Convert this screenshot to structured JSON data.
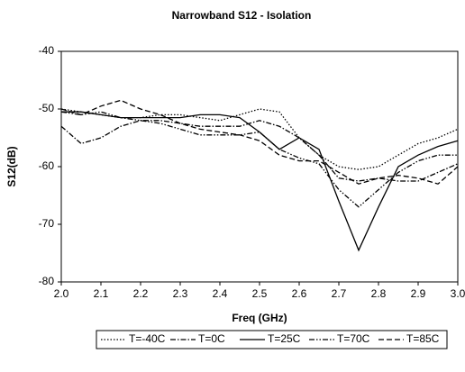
{
  "chart_data": {
    "type": "line",
    "title": "Narrowband S12 - Isolation",
    "xlabel": "Freq (GHz)",
    "ylabel": "S12(dB)",
    "x": [
      2.0,
      2.05,
      2.1,
      2.15,
      2.2,
      2.25,
      2.3,
      2.35,
      2.4,
      2.45,
      2.5,
      2.55,
      2.6,
      2.65,
      2.7,
      2.75,
      2.8,
      2.85,
      2.9,
      2.95,
      3.0
    ],
    "series": [
      {
        "name": "T=-40C",
        "color": "#000000",
        "dash": "1.5,2",
        "values": [
          -50,
          -50.5,
          -51,
          -51.5,
          -51.5,
          -51,
          -51,
          -51.5,
          -52,
          -51,
          -50,
          -50.5,
          -55,
          -58,
          -60,
          -60.5,
          -60,
          -58,
          -56,
          -55,
          -53.5
        ]
      },
      {
        "name": "T=0C",
        "color": "#000000",
        "dash": "6,2,1.5,2",
        "values": [
          -53,
          -56,
          -55,
          -53,
          -52,
          -52,
          -52.5,
          -53,
          -53,
          -53,
          -52,
          -53,
          -55,
          -58,
          -62,
          -62.5,
          -62,
          -62.5,
          -62.5,
          -61,
          -59.5
        ]
      },
      {
        "name": "T=25C",
        "color": "#000000",
        "dash": "none",
        "values": [
          -50.5,
          -50.5,
          -51,
          -51.5,
          -51.5,
          -51.5,
          -51.5,
          -51,
          -51,
          -51.5,
          -54,
          -57,
          -55,
          -57,
          -66,
          -74.5,
          -67,
          -60,
          -58,
          -56.5,
          -55.5
        ]
      },
      {
        "name": "T=70C",
        "color": "#000000",
        "dash": "6,2,1.5,2,1.5,2",
        "values": [
          -50.5,
          -51,
          -50.5,
          -51.5,
          -52,
          -52.5,
          -53.5,
          -54.5,
          -54.5,
          -54.5,
          -54,
          -57,
          -58.5,
          -59.5,
          -64,
          -67,
          -64,
          -61,
          -59,
          -58,
          -58
        ]
      },
      {
        "name": "T=85C",
        "color": "#000000",
        "dash": "6,3",
        "values": [
          -50,
          -51,
          -49.5,
          -48.5,
          -50,
          -51,
          -52.5,
          -53.5,
          -54,
          -54.5,
          -55.5,
          -58,
          -59,
          -59,
          -61,
          -63,
          -62,
          -61.5,
          -62,
          -63,
          -60
        ]
      }
    ],
    "xlim": [
      2.0,
      3.0
    ],
    "xticks": [
      {
        "value": 2.0,
        "label": "2.0"
      },
      2.1,
      2.2,
      2.3,
      2.4,
      2.5,
      2.6,
      2.7,
      2.8,
      2.9,
      {
        "value": 3.0,
        "label": "3.0"
      }
    ],
    "ylim": [
      -80,
      -40
    ],
    "yticks": [
      -40,
      -50,
      -60,
      -70,
      -80
    ],
    "grid": false,
    "legend": "bottom"
  }
}
